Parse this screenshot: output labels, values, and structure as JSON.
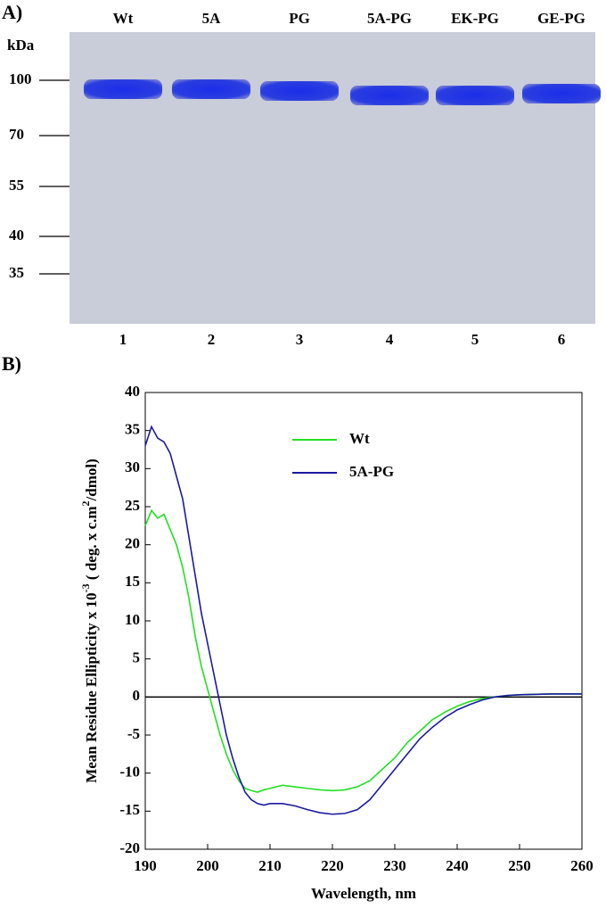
{
  "panel_a": {
    "label": "A)",
    "unit": "kDa",
    "markers": [
      100,
      70,
      55,
      40,
      35
    ],
    "lanes": [
      {
        "name": "Wt",
        "number": 1
      },
      {
        "name": "5A",
        "number": 2
      },
      {
        "name": "PG",
        "number": 3
      },
      {
        "name": "5A-PG",
        "number": 4
      },
      {
        "name": "EK-PG",
        "number": 5
      },
      {
        "name": "GE-PG",
        "number": 6
      }
    ]
  },
  "chart_data": {
    "type": "line",
    "panel_label": "B)",
    "x_label": "Wavelength, nm",
    "y_label": [
      "Mean Residue Ellipticity x 10",
      "-3",
      " ( deg. x c.m",
      "2",
      "/dmol)"
    ],
    "x": [
      190,
      191,
      192,
      193,
      194,
      195,
      196,
      197,
      198,
      199,
      200,
      201,
      202,
      203,
      204,
      205,
      206,
      207,
      208,
      209,
      210,
      212,
      214,
      216,
      218,
      220,
      222,
      224,
      226,
      228,
      230,
      232,
      234,
      236,
      238,
      240,
      242,
      244,
      246,
      248,
      250,
      255,
      260
    ],
    "series": [
      {
        "name": "Wt",
        "color": "#22e022",
        "values": [
          22.5,
          24.5,
          23.5,
          24,
          22,
          20,
          17,
          13,
          8,
          4,
          1,
          -2,
          -5,
          -7.5,
          -9.5,
          -11,
          -12,
          -12.3,
          -12.5,
          -12.2,
          -12,
          -11.6,
          -11.8,
          -12,
          -12.2,
          -12.3,
          -12.2,
          -11.8,
          -11,
          -9.5,
          -8,
          -6,
          -4.5,
          -3,
          -2,
          -1.2,
          -0.6,
          -0.2,
          0,
          0.2,
          0.3,
          0.4,
          0.4
        ]
      },
      {
        "name": "5A-PG",
        "color": "#1a1aa0",
        "values": [
          33,
          35.5,
          34,
          33.5,
          32,
          29,
          26,
          21,
          16,
          11,
          7,
          3,
          -1,
          -5,
          -8,
          -10.5,
          -12.5,
          -13.5,
          -14,
          -14.2,
          -14,
          -14,
          -14.3,
          -14.8,
          -15.2,
          -15.4,
          -15.3,
          -14.8,
          -13.5,
          -11.5,
          -9.5,
          -7.5,
          -5.5,
          -4,
          -2.7,
          -1.7,
          -1,
          -0.4,
          0,
          0.2,
          0.3,
          0.4,
          0.4
        ]
      }
    ],
    "xlim": [
      190,
      260
    ],
    "xticks": [
      190,
      200,
      210,
      220,
      230,
      240,
      250,
      260
    ],
    "ylim": [
      -20,
      40
    ],
    "yticks": [
      -20,
      -15,
      -10,
      -5,
      0,
      5,
      10,
      15,
      20,
      25,
      30,
      35,
      40
    ]
  }
}
